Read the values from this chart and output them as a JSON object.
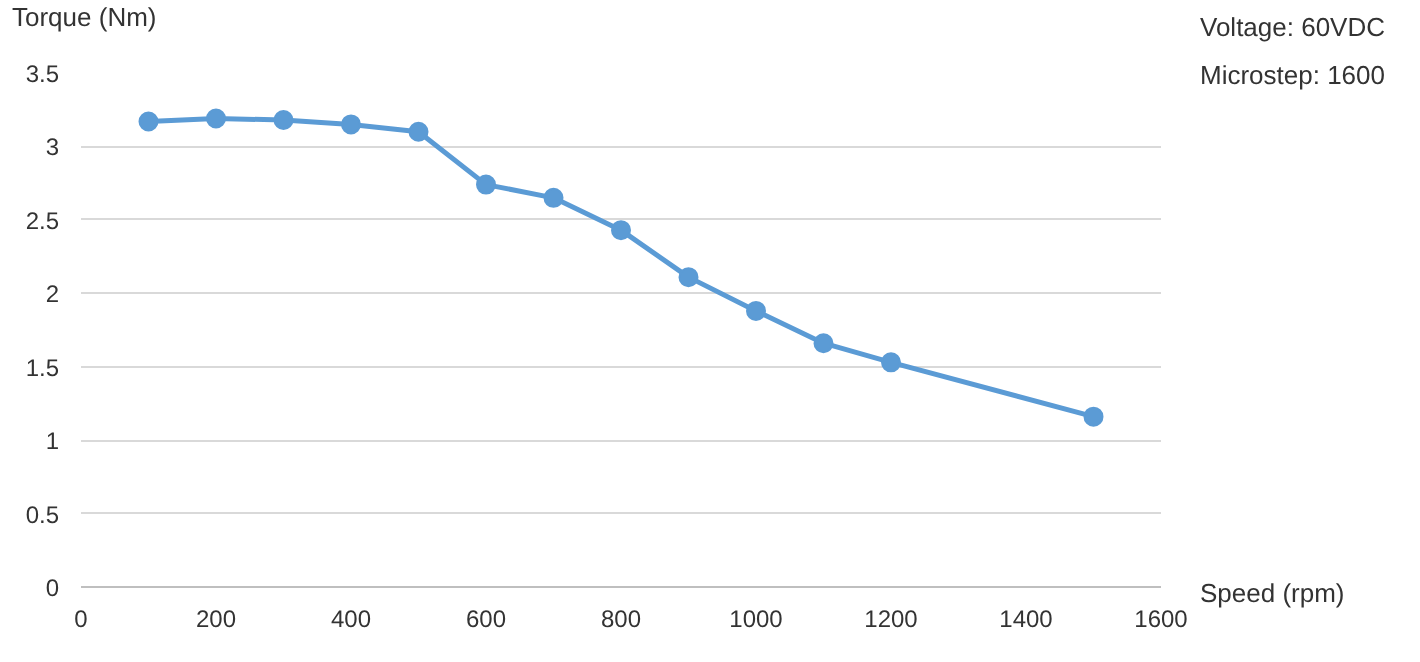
{
  "chart_data": {
    "type": "line",
    "ylabel": "Torque (Nm)",
    "xlabel": "Speed (rpm)",
    "annotations": [
      "Voltage: 60VDC",
      "Microstep: 1600"
    ],
    "x": [
      100,
      200,
      300,
      400,
      500,
      600,
      700,
      800,
      900,
      1000,
      1100,
      1200,
      1500
    ],
    "series": [
      {
        "color": "#5b9bd5",
        "values": [
          3.17,
          3.19,
          3.18,
          3.15,
          3.1,
          2.74,
          2.65,
          2.43,
          2.11,
          1.88,
          1.66,
          1.53,
          1.16
        ]
      }
    ],
    "xlim": [
      0,
      1600
    ],
    "xticks": [
      0,
      200,
      400,
      600,
      800,
      1000,
      1200,
      1400,
      1600
    ],
    "ylim": [
      0,
      3.5
    ],
    "yticks": [
      0,
      0.5,
      1,
      1.5,
      2,
      2.5,
      3,
      3.5
    ],
    "grid": "y",
    "marker": "circle",
    "line_style": "solid"
  }
}
